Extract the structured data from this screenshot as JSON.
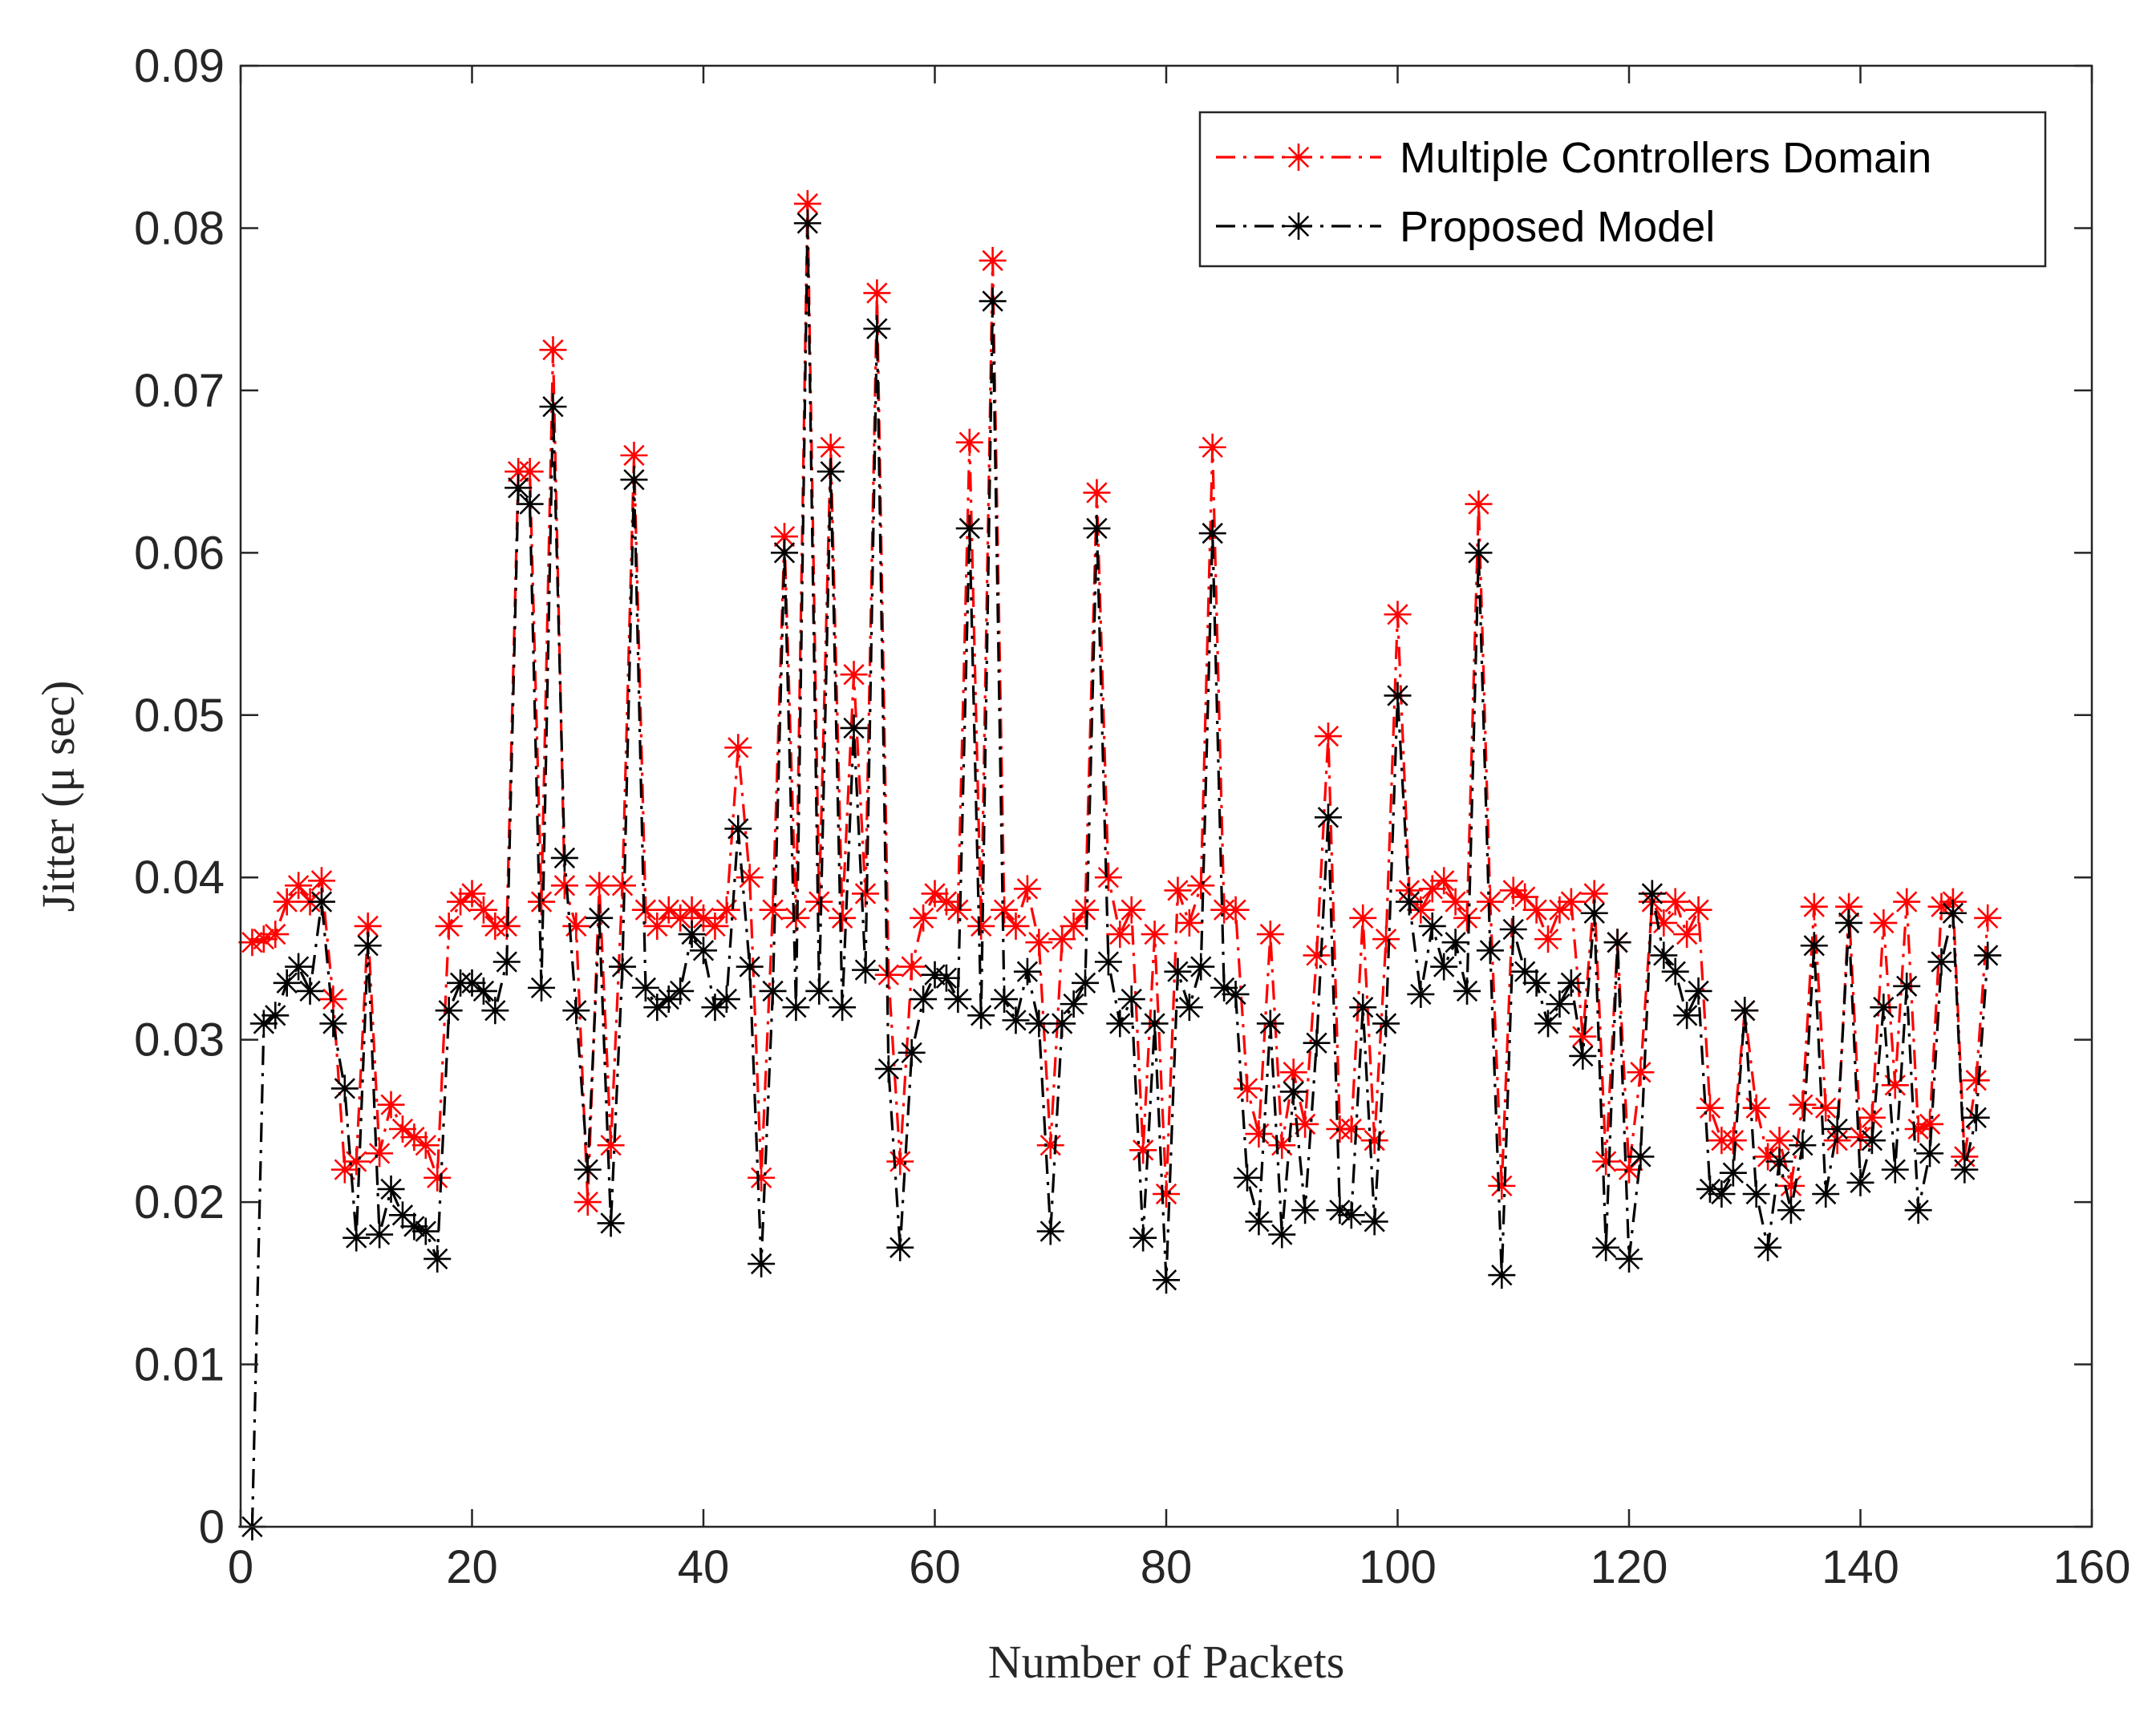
{
  "chart_data": {
    "type": "line",
    "xlabel": "Number of Packets",
    "ylabel": "Jitter (μ sec)",
    "xlim": [
      0,
      160
    ],
    "ylim": [
      0,
      0.09
    ],
    "xticks": [
      0,
      20,
      40,
      60,
      80,
      100,
      120,
      140,
      160
    ],
    "yticks": [
      0,
      0.01,
      0.02,
      0.03,
      0.04,
      0.05,
      0.06,
      0.07,
      0.08,
      0.09
    ],
    "ytick_labels": [
      "0",
      "0.01",
      "0.02",
      "0.03",
      "0.04",
      "0.05",
      "0.06",
      "0.07",
      "0.08",
      "0.09"
    ],
    "legend_position": "top-right",
    "grid": false,
    "series": [
      {
        "name": "Multiple Controllers Domain",
        "color": "#ff0000",
        "line_style": "dash-dot",
        "marker": "asterisk",
        "x": [
          1,
          2,
          3,
          4,
          5,
          6,
          7,
          8,
          9,
          10,
          11,
          12,
          13,
          14,
          15,
          16,
          17,
          18,
          19,
          20,
          21,
          22,
          23,
          24,
          25,
          26,
          27,
          28,
          29,
          30,
          31,
          32,
          33,
          34,
          35,
          36,
          37,
          38,
          39,
          40,
          41,
          42,
          43,
          44,
          45,
          46,
          47,
          48,
          49,
          50,
          51,
          52,
          53,
          54,
          55,
          56,
          57,
          58,
          59,
          60,
          61,
          62,
          63,
          64,
          65,
          66,
          67,
          68,
          69,
          70,
          71,
          72,
          73,
          74,
          75,
          76,
          77,
          78,
          79,
          80,
          81,
          82,
          83,
          84,
          85,
          86,
          87,
          88,
          89,
          90,
          91,
          92,
          93,
          94,
          95,
          96,
          97,
          98,
          99,
          100,
          101,
          102,
          103,
          104,
          105,
          106,
          107,
          108,
          109,
          110,
          111,
          112,
          113,
          114,
          115,
          116,
          117,
          118,
          119,
          120,
          121,
          122,
          123,
          124,
          125,
          126,
          127,
          128,
          129,
          130,
          131,
          132,
          133,
          134,
          135,
          136,
          137,
          138,
          139,
          140,
          141,
          142,
          143,
          144,
          145,
          146,
          147,
          148,
          149,
          150,
          151
        ],
        "values": [
          0.036,
          0.0362,
          0.0365,
          0.0385,
          0.0395,
          0.0385,
          0.0398,
          0.0325,
          0.022,
          0.0225,
          0.037,
          0.023,
          0.026,
          0.0245,
          0.024,
          0.0235,
          0.0215,
          0.037,
          0.0385,
          0.039,
          0.038,
          0.037,
          0.037,
          0.065,
          0.065,
          0.0385,
          0.0725,
          0.0395,
          0.037,
          0.02,
          0.0395,
          0.0235,
          0.0395,
          0.066,
          0.038,
          0.037,
          0.038,
          0.0375,
          0.038,
          0.0375,
          0.037,
          0.038,
          0.048,
          0.04,
          0.0215,
          0.038,
          0.061,
          0.0375,
          0.0815,
          0.0385,
          0.0665,
          0.0375,
          0.0525,
          0.039,
          0.076,
          0.034,
          0.0225,
          0.0345,
          0.0375,
          0.039,
          0.0385,
          0.038,
          0.0668,
          0.037,
          0.078,
          0.038,
          0.037,
          0.0393,
          0.036,
          0.0235,
          0.0362,
          0.037,
          0.038,
          0.0637,
          0.04,
          0.0365,
          0.038,
          0.0232,
          0.0365,
          0.0205,
          0.0392,
          0.0372,
          0.0395,
          0.0665,
          0.038,
          0.038,
          0.027,
          0.0242,
          0.0365,
          0.0235,
          0.028,
          0.0248,
          0.0352,
          0.0487,
          0.0245,
          0.0245,
          0.0375,
          0.0238,
          0.0362,
          0.0562,
          0.0392,
          0.038,
          0.0393,
          0.0398,
          0.0385,
          0.0375,
          0.063,
          0.0385,
          0.021,
          0.0392,
          0.0388,
          0.038,
          0.0362,
          0.038,
          0.0385,
          0.0302,
          0.039,
          0.0225,
          0.036,
          0.022,
          0.028,
          0.0385,
          0.0372,
          0.0385,
          0.0365,
          0.038,
          0.0258,
          0.0238,
          0.0238,
          0.0318,
          0.0258,
          0.0228,
          0.0238,
          0.021,
          0.026,
          0.0382,
          0.0258,
          0.0238,
          0.0382,
          0.024,
          0.0252,
          0.0372,
          0.0272,
          0.0385,
          0.0245,
          0.0248,
          0.0382,
          0.0385,
          0.0228,
          0.0275,
          0.0375
        ]
      },
      {
        "name": "Proposed Model",
        "color": "#000000",
        "line_style": "dash-dot",
        "marker": "asterisk",
        "x": [
          1,
          2,
          3,
          4,
          5,
          6,
          7,
          8,
          9,
          10,
          11,
          12,
          13,
          14,
          15,
          16,
          17,
          18,
          19,
          20,
          21,
          22,
          23,
          24,
          25,
          26,
          27,
          28,
          29,
          30,
          31,
          32,
          33,
          34,
          35,
          36,
          37,
          38,
          39,
          40,
          41,
          42,
          43,
          44,
          45,
          46,
          47,
          48,
          49,
          50,
          51,
          52,
          53,
          54,
          55,
          56,
          57,
          58,
          59,
          60,
          61,
          62,
          63,
          64,
          65,
          66,
          67,
          68,
          69,
          70,
          71,
          72,
          73,
          74,
          75,
          76,
          77,
          78,
          79,
          80,
          81,
          82,
          83,
          84,
          85,
          86,
          87,
          88,
          89,
          90,
          91,
          92,
          93,
          94,
          95,
          96,
          97,
          98,
          99,
          100,
          101,
          102,
          103,
          104,
          105,
          106,
          107,
          108,
          109,
          110,
          111,
          112,
          113,
          114,
          115,
          116,
          117,
          118,
          119,
          120,
          121,
          122,
          123,
          124,
          125,
          126,
          127,
          128,
          129,
          130,
          131,
          132,
          133,
          134,
          135,
          136,
          137,
          138,
          139,
          140,
          141,
          142,
          143,
          144,
          145,
          146,
          147,
          148,
          149,
          150,
          151
        ],
        "values": [
          0.0,
          0.031,
          0.0315,
          0.0335,
          0.0345,
          0.033,
          0.0385,
          0.031,
          0.027,
          0.0178,
          0.0358,
          0.018,
          0.0208,
          0.0192,
          0.0185,
          0.0182,
          0.0165,
          0.0318,
          0.0335,
          0.0335,
          0.033,
          0.0318,
          0.0348,
          0.064,
          0.063,
          0.0332,
          0.069,
          0.0412,
          0.0318,
          0.022,
          0.0375,
          0.0187,
          0.0345,
          0.0645,
          0.0332,
          0.032,
          0.0325,
          0.033,
          0.0365,
          0.0355,
          0.032,
          0.0325,
          0.043,
          0.0345,
          0.0162,
          0.033,
          0.06,
          0.032,
          0.0803,
          0.033,
          0.065,
          0.032,
          0.0492,
          0.0343,
          0.0738,
          0.0282,
          0.0172,
          0.0292,
          0.0325,
          0.034,
          0.0338,
          0.0325,
          0.0615,
          0.0315,
          0.0755,
          0.0325,
          0.0312,
          0.0342,
          0.031,
          0.0182,
          0.031,
          0.0322,
          0.0335,
          0.0615,
          0.0348,
          0.031,
          0.0325,
          0.0178,
          0.031,
          0.0152,
          0.0342,
          0.032,
          0.0345,
          0.0612,
          0.0332,
          0.0328,
          0.0215,
          0.0188,
          0.031,
          0.018,
          0.0268,
          0.0195,
          0.0298,
          0.0437,
          0.0195,
          0.0192,
          0.032,
          0.0188,
          0.031,
          0.0512,
          0.0385,
          0.0328,
          0.037,
          0.0345,
          0.036,
          0.033,
          0.06,
          0.0355,
          0.0155,
          0.0368,
          0.0342,
          0.0335,
          0.031,
          0.0322,
          0.0335,
          0.029,
          0.0378,
          0.0172,
          0.036,
          0.0165,
          0.0228,
          0.039,
          0.0352,
          0.0342,
          0.0315,
          0.033,
          0.0208,
          0.0205,
          0.0218,
          0.0318,
          0.0205,
          0.0172,
          0.0225,
          0.0195,
          0.0235,
          0.0358,
          0.0205,
          0.0245,
          0.0372,
          0.0212,
          0.0238,
          0.032,
          0.022,
          0.0333,
          0.0195,
          0.023,
          0.0348,
          0.0378,
          0.022,
          0.0252,
          0.0352
        ]
      }
    ]
  }
}
